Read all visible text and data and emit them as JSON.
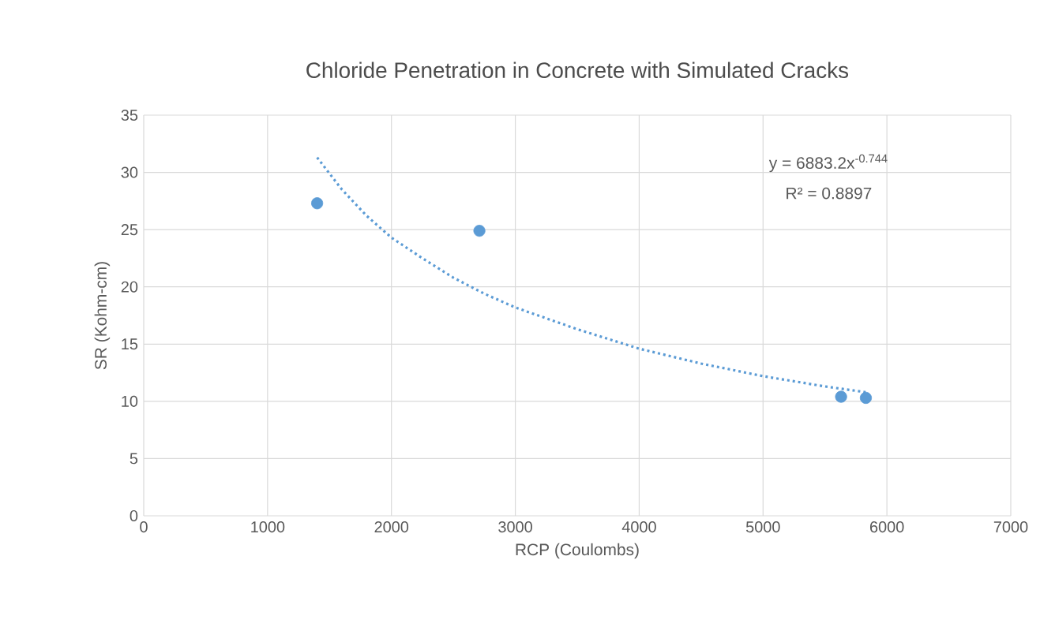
{
  "chart_data": {
    "type": "scatter",
    "title": "Chloride Penetration in Concrete with Simulated Cracks",
    "xlabel": "RCP (Coulombs)",
    "ylabel": "SR (Kohm-cm)",
    "series": [
      {
        "color": "#5b9bd5",
        "marker": "circle",
        "x": [
          1400,
          2710,
          5630,
          5830
        ],
        "values": [
          27.3,
          24.9,
          10.4,
          10.3
        ]
      },
      {
        "type": "line",
        "color": "#5b9bd5",
        "line_style": "dotted",
        "marker": "none",
        "x": [
          1400,
          1600,
          1800,
          2000,
          2250,
          2500,
          2750,
          3000,
          3500,
          4000,
          4500,
          5000,
          5500,
          5830
        ],
        "values": [
          31.3,
          28.5,
          26.2,
          24.3,
          22.5,
          20.8,
          19.4,
          18.2,
          16.3,
          14.6,
          13.3,
          12.2,
          11.3,
          10.8
        ]
      }
    ],
    "annotations": [
      "y = 6883.2x$^{-0.744}$",
      "R² = 0.8897"
    ],
    "xlim": [
      0,
      7000
    ],
    "ylim": [
      0,
      35
    ],
    "xticks": [
      0,
      1000,
      2000,
      3000,
      4000,
      5000,
      6000,
      7000
    ],
    "yticks": [
      0,
      5,
      10,
      15,
      20,
      25,
      30,
      35
    ],
    "grid": true
  }
}
